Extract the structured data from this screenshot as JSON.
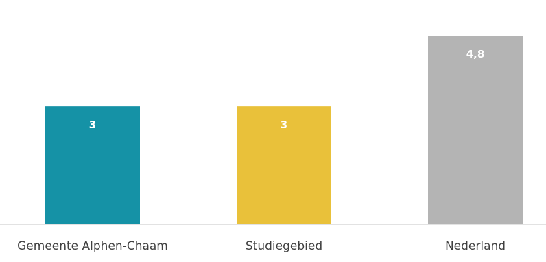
{
  "chart_data": {
    "type": "bar",
    "categories": [
      "Gemeente Alphen-Chaam",
      "Studiegebied",
      "Nederland"
    ],
    "values": [
      3,
      3,
      4.8
    ],
    "value_labels": [
      "3",
      "3",
      "4,8"
    ],
    "colors": [
      "#1592a6",
      "#e9c13a",
      "#b4b4b4"
    ],
    "title": "",
    "xlabel": "",
    "ylabel": "",
    "ylim": [
      0,
      5.15
    ],
    "grid": false,
    "legend": "none"
  }
}
